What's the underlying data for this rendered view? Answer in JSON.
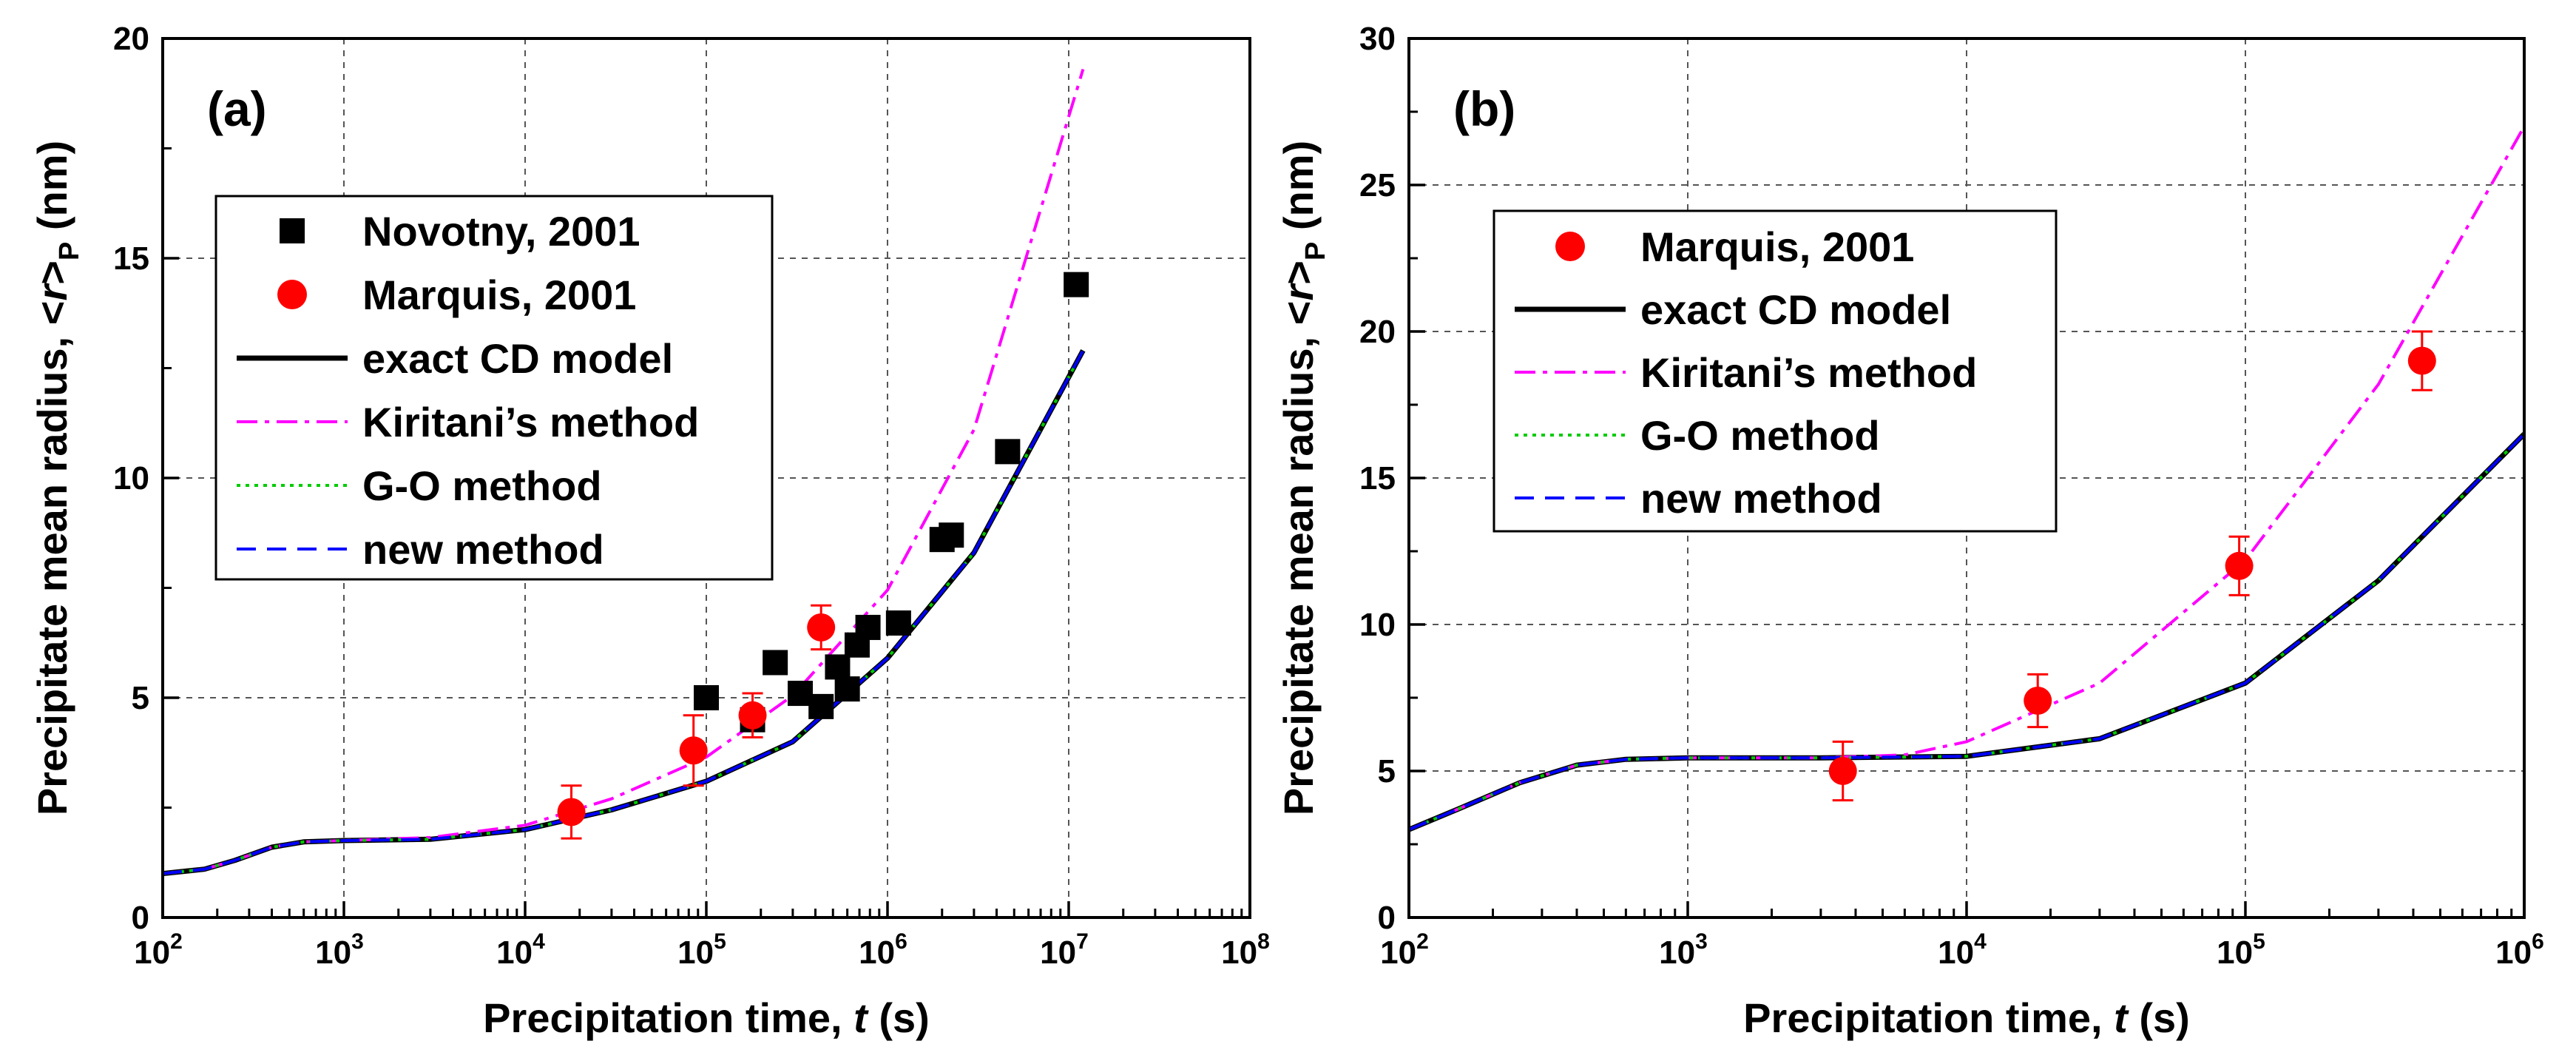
{
  "chart_data": [
    {
      "type": "line",
      "panel_label": "(a)",
      "xlabel_prefix": "Precipitation time, ",
      "xlabel_var": "t",
      "xlabel_suffix": " (s)",
      "ylabel_prefix": "Precipitate mean radius, <",
      "ylabel_var": "r",
      "ylabel_mid": ">",
      "ylabel_sub": "P",
      "ylabel_suffix": " (nm)",
      "xscale": "log",
      "xlim": [
        100,
        100000000
      ],
      "ylim": [
        0,
        20
      ],
      "x_ticks": [
        {
          "base": "10",
          "exp": "2"
        },
        {
          "base": "10",
          "exp": "3"
        },
        {
          "base": "10",
          "exp": "4"
        },
        {
          "base": "10",
          "exp": "5"
        },
        {
          "base": "10",
          "exp": "6"
        },
        {
          "base": "10",
          "exp": "7"
        },
        {
          "base": "10",
          "exp": "8"
        }
      ],
      "y_ticks": [
        "0",
        "5",
        "10",
        "15",
        "20"
      ],
      "grid": true,
      "legend_position": "upper-left",
      "series": [
        {
          "name": "Novotny, 2001",
          "kind": "square",
          "color": "#000000",
          "points": [
            [
              100000,
              5.0
            ],
            [
              180000,
              4.5
            ],
            [
              240000,
              5.8
            ],
            [
              330000,
              5.1
            ],
            [
              430000,
              4.8
            ],
            [
              530000,
              5.7
            ],
            [
              600000,
              5.2
            ],
            [
              680000,
              6.2
            ],
            [
              780000,
              6.6
            ],
            [
              1150000,
              6.7
            ],
            [
              2000000,
              8.6
            ],
            [
              2250000,
              8.7
            ],
            [
              4600000,
              10.6
            ],
            [
              11000000,
              14.4
            ]
          ]
        },
        {
          "name": "Marquis, 2001",
          "kind": "circle",
          "color": "#ff0000",
          "points": [
            [
              18000,
              2.4,
              0.6
            ],
            [
              85000,
              3.8,
              0.8
            ],
            [
              180000,
              4.6,
              0.5
            ],
            [
              430000,
              6.6,
              0.5
            ]
          ]
        },
        {
          "name": "exact CD model",
          "kind": "line",
          "color": "#000000",
          "dash": "solid",
          "points": [
            [
              100,
              1.0
            ],
            [
              170,
              1.1
            ],
            [
              250,
              1.3
            ],
            [
              400,
              1.6
            ],
            [
              600,
              1.72
            ],
            [
              1000,
              1.75
            ],
            [
              3000,
              1.78
            ],
            [
              10000,
              2.0
            ],
            [
              30000,
              2.45
            ],
            [
              100000,
              3.1
            ],
            [
              300000,
              4.0
            ],
            [
              1000000,
              5.9
            ],
            [
              3000000,
              8.3
            ],
            [
              12000000,
              12.9
            ]
          ]
        },
        {
          "name": "Kiritani’s method",
          "kind": "line",
          "color": "#ff00ff",
          "dash": "dashdot",
          "points": [
            [
              100,
              1.0
            ],
            [
              170,
              1.1
            ],
            [
              250,
              1.3
            ],
            [
              400,
              1.6
            ],
            [
              600,
              1.72
            ],
            [
              1000,
              1.75
            ],
            [
              3000,
              1.82
            ],
            [
              10000,
              2.1
            ],
            [
              30000,
              2.7
            ],
            [
              100000,
              3.65
            ],
            [
              300000,
              5.05
            ],
            [
              1000000,
              7.45
            ],
            [
              3000000,
              11.1
            ],
            [
              12000000,
              19.3
            ]
          ]
        },
        {
          "name": "G-O method",
          "kind": "line",
          "color": "#00cc00",
          "dash": "dotted",
          "points": [
            [
              100,
              1.0
            ],
            [
              170,
              1.1
            ],
            [
              250,
              1.3
            ],
            [
              400,
              1.6
            ],
            [
              600,
              1.72
            ],
            [
              1000,
              1.75
            ],
            [
              3000,
              1.78
            ],
            [
              10000,
              2.0
            ],
            [
              30000,
              2.45
            ],
            [
              100000,
              3.1
            ],
            [
              300000,
              4.0
            ],
            [
              1000000,
              5.9
            ],
            [
              3000000,
              8.3
            ],
            [
              12000000,
              12.9
            ]
          ]
        },
        {
          "name": "new method",
          "kind": "line",
          "color": "#0000ff",
          "dash": "dashed",
          "points": [
            [
              100,
              1.0
            ],
            [
              170,
              1.1
            ],
            [
              250,
              1.3
            ],
            [
              400,
              1.6
            ],
            [
              600,
              1.72
            ],
            [
              1000,
              1.75
            ],
            [
              3000,
              1.78
            ],
            [
              10000,
              2.0
            ],
            [
              30000,
              2.45
            ],
            [
              100000,
              3.1
            ],
            [
              300000,
              4.0
            ],
            [
              1000000,
              5.9
            ],
            [
              3000000,
              8.3
            ],
            [
              12000000,
              12.9
            ]
          ]
        }
      ]
    },
    {
      "type": "line",
      "panel_label": "(b)",
      "xlabel_prefix": "Precipitation time, ",
      "xlabel_var": "t",
      "xlabel_suffix": " (s)",
      "ylabel_prefix": "Precipitate mean radius, <",
      "ylabel_var": "r",
      "ylabel_mid": ">",
      "ylabel_sub": "P",
      "ylabel_suffix": " (nm)",
      "xscale": "log",
      "xlim": [
        100,
        1000000
      ],
      "ylim": [
        0,
        30
      ],
      "x_ticks": [
        {
          "base": "10",
          "exp": "2"
        },
        {
          "base": "10",
          "exp": "3"
        },
        {
          "base": "10",
          "exp": "4"
        },
        {
          "base": "10",
          "exp": "5"
        },
        {
          "base": "10",
          "exp": "6"
        }
      ],
      "y_ticks": [
        "0",
        "5",
        "10",
        "15",
        "20",
        "25",
        "30"
      ],
      "grid": true,
      "legend_position": "upper-left",
      "series": [
        {
          "name": "Marquis, 2001",
          "kind": "circle",
          "color": "#ff0000",
          "points": [
            [
              3600,
              5.0,
              1.0
            ],
            [
              18000,
              7.4,
              0.9
            ],
            [
              95000,
              12.0,
              1.0
            ],
            [
              430000,
              19.0,
              1.0
            ]
          ]
        },
        {
          "name": "exact CD model",
          "kind": "line",
          "color": "#000000",
          "dash": "solid",
          "points": [
            [
              100,
              3.0
            ],
            [
              150,
              3.7
            ],
            [
              250,
              4.6
            ],
            [
              400,
              5.2
            ],
            [
              600,
              5.4
            ],
            [
              1000,
              5.45
            ],
            [
              3000,
              5.45
            ],
            [
              10000,
              5.5
            ],
            [
              30000,
              6.1
            ],
            [
              100000,
              8.0
            ],
            [
              300000,
              11.5
            ],
            [
              1000000,
              16.5
            ]
          ]
        },
        {
          "name": "Kiritani’s method",
          "kind": "line",
          "color": "#ff00ff",
          "dash": "dashdot",
          "points": [
            [
              100,
              3.0
            ],
            [
              150,
              3.7
            ],
            [
              250,
              4.6
            ],
            [
              400,
              5.2
            ],
            [
              600,
              5.4
            ],
            [
              1000,
              5.45
            ],
            [
              3000,
              5.45
            ],
            [
              6000,
              5.55
            ],
            [
              10000,
              6.0
            ],
            [
              30000,
              8.0
            ],
            [
              100000,
              12.2
            ],
            [
              300000,
              18.2
            ],
            [
              1000000,
              27.0
            ]
          ]
        },
        {
          "name": "G-O method",
          "kind": "line",
          "color": "#00cc00",
          "dash": "dotted",
          "points": [
            [
              100,
              3.0
            ],
            [
              150,
              3.7
            ],
            [
              250,
              4.6
            ],
            [
              400,
              5.2
            ],
            [
              600,
              5.4
            ],
            [
              1000,
              5.45
            ],
            [
              3000,
              5.45
            ],
            [
              10000,
              5.5
            ],
            [
              30000,
              6.1
            ],
            [
              100000,
              8.0
            ],
            [
              300000,
              11.5
            ],
            [
              1000000,
              16.5
            ]
          ]
        },
        {
          "name": "new method",
          "kind": "line",
          "color": "#0000ff",
          "dash": "dashed",
          "points": [
            [
              100,
              3.0
            ],
            [
              150,
              3.7
            ],
            [
              250,
              4.6
            ],
            [
              400,
              5.2
            ],
            [
              600,
              5.4
            ],
            [
              1000,
              5.45
            ],
            [
              3000,
              5.45
            ],
            [
              10000,
              5.5
            ],
            [
              30000,
              6.1
            ],
            [
              100000,
              8.0
            ],
            [
              300000,
              11.5
            ],
            [
              1000000,
              16.5
            ]
          ]
        }
      ]
    }
  ]
}
